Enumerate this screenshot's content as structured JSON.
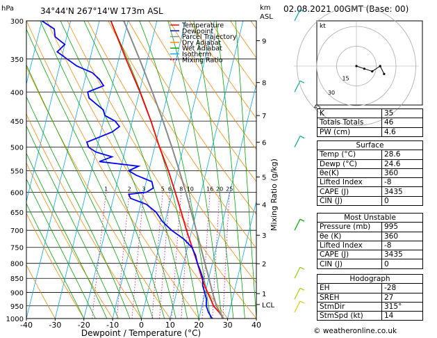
{
  "header": {
    "hpa_label": "hPa",
    "location": "34°44'N  267°14'W  173m  ASL",
    "km_label": "km",
    "asl_label": "ASL",
    "datetime": "02.08.2021  00GMT  (Base: 00)"
  },
  "chart_data": {
    "type": "line",
    "title": "",
    "xlabel": "Dewpoint / Temperature (°C)",
    "ylabel": "hPa",
    "right_axis_label": "Mixing Ratio (g/kg)",
    "xlim": [
      -40,
      40
    ],
    "ylim": [
      1000,
      300
    ],
    "x_ticks": [
      -40,
      -30,
      -20,
      -10,
      0,
      10,
      20,
      30,
      40
    ],
    "pressure_ticks": [
      300,
      350,
      400,
      450,
      500,
      550,
      600,
      650,
      700,
      750,
      800,
      850,
      900,
      950,
      1000
    ],
    "km_ticks": [
      {
        "label": "9",
        "p": 325
      },
      {
        "label": "8",
        "p": 385
      },
      {
        "label": "7",
        "p": 440
      },
      {
        "label": "6",
        "p": 490
      },
      {
        "label": "5",
        "p": 564
      },
      {
        "label": "4",
        "p": 630
      },
      {
        "label": "3",
        "p": 714
      },
      {
        "label": "2",
        "p": 801
      },
      {
        "label": "1",
        "p": 904
      },
      {
        "label": "LCL",
        "p": 945
      }
    ],
    "mixing_ratio_labels": [
      "1",
      "2",
      "3",
      "5",
      "6",
      "8",
      "10",
      "16",
      "20",
      "25"
    ],
    "mixing_ratio_values": [
      1,
      2,
      3,
      5,
      6,
      8,
      10,
      16,
      20,
      25
    ],
    "legend": [
      {
        "name": "Temperature",
        "color": "#ff0000",
        "dash": ""
      },
      {
        "name": "Dewpoint",
        "color": "#0000ff",
        "dash": ""
      },
      {
        "name": "Parcel Trajectory",
        "color": "#888888",
        "dash": ""
      },
      {
        "name": "Dry Adiabat",
        "color": "#ff8800",
        "dash": ""
      },
      {
        "name": "Wet Adiabat",
        "color": "#00aa00",
        "dash": ""
      },
      {
        "name": "Isotherm",
        "color": "#00aaff",
        "dash": ""
      },
      {
        "name": "Mixing Ratio",
        "color": "#cc0099",
        "dash": "2,2"
      }
    ],
    "series": [
      {
        "name": "Temperature",
        "color": "#ff0000",
        "points": [
          [
            1000,
            28.6
          ],
          [
            975,
            26.5
          ],
          [
            950,
            24
          ],
          [
            925,
            22.5
          ],
          [
            900,
            20.8
          ],
          [
            850,
            17.6
          ],
          [
            800,
            14.8
          ],
          [
            750,
            11.6
          ],
          [
            700,
            8.2
          ],
          [
            650,
            4.8
          ],
          [
            600,
            1.0
          ],
          [
            550,
            -3.2
          ],
          [
            500,
            -8.3
          ],
          [
            450,
            -13.5
          ],
          [
            400,
            -19.8
          ],
          [
            350,
            -27.5
          ],
          [
            300,
            -36
          ]
        ]
      },
      {
        "name": "Dewpoint",
        "color": "#0000ff",
        "points": [
          [
            1000,
            24.6
          ],
          [
            975,
            22.8
          ],
          [
            950,
            21.5
          ],
          [
            925,
            21.0
          ],
          [
            900,
            19.8
          ],
          [
            875,
            18.5
          ],
          [
            850,
            18.0
          ],
          [
            825,
            16.5
          ],
          [
            800,
            14.8
          ],
          [
            775,
            13.5
          ],
          [
            750,
            11.5
          ],
          [
            725,
            8.0
          ],
          [
            700,
            3.0
          ],
          [
            675,
            -1
          ],
          [
            650,
            -4
          ],
          [
            630,
            -8
          ],
          [
            615,
            -14
          ],
          [
            605,
            -15
          ],
          [
            600,
            -9
          ],
          [
            590,
            -7
          ],
          [
            575,
            -8
          ],
          [
            560,
            -14
          ],
          [
            550,
            -17
          ],
          [
            540,
            -14
          ],
          [
            530,
            -28
          ],
          [
            520,
            -24
          ],
          [
            510,
            -30
          ],
          [
            500,
            -33
          ],
          [
            490,
            -34
          ],
          [
            480,
            -30
          ],
          [
            470,
            -26
          ],
          [
            460,
            -24
          ],
          [
            450,
            -26
          ],
          [
            440,
            -30
          ],
          [
            430,
            -31
          ],
          [
            420,
            -34
          ],
          [
            410,
            -37
          ],
          [
            400,
            -38
          ],
          [
            390,
            -33
          ],
          [
            380,
            -35
          ],
          [
            370,
            -38
          ],
          [
            360,
            -44
          ],
          [
            350,
            -48
          ],
          [
            340,
            -52
          ],
          [
            330,
            -50
          ],
          [
            320,
            -54
          ],
          [
            310,
            -55
          ],
          [
            300,
            -60
          ]
        ]
      },
      {
        "name": "Parcel Trajectory",
        "color": "#888888",
        "points": [
          [
            1000,
            28.6
          ],
          [
            975,
            26.8
          ],
          [
            950,
            25.0
          ],
          [
            925,
            23.8
          ],
          [
            900,
            22.5
          ],
          [
            850,
            20.1
          ],
          [
            800,
            17.4
          ],
          [
            750,
            14.6
          ],
          [
            700,
            11.6
          ],
          [
            650,
            8.3
          ],
          [
            600,
            4.7
          ],
          [
            550,
            0.6
          ],
          [
            500,
            -4.0
          ],
          [
            450,
            -9.3
          ],
          [
            400,
            -15.5
          ],
          [
            350,
            -22.8
          ],
          [
            300,
            -31.5
          ]
        ]
      }
    ],
    "wind_barbs": [
      {
        "p": 300,
        "color": "#00aaaa"
      },
      {
        "p": 400,
        "color": "#00aaaa"
      },
      {
        "p": 500,
        "color": "#00aa88"
      },
      {
        "p": 700,
        "color": "#00aa00"
      },
      {
        "p": 850,
        "color": "#88cc00"
      },
      {
        "p": 925,
        "color": "#aacc00"
      },
      {
        "p": 975,
        "color": "#ddcc00"
      }
    ]
  },
  "hodograph": {
    "unit_label": "kt",
    "ring_labels": [
      "15",
      "30",
      "45"
    ],
    "points": [
      [
        0,
        0
      ],
      [
        6,
        -2
      ],
      [
        12,
        -4
      ],
      [
        18,
        0
      ],
      [
        21,
        -6
      ]
    ]
  },
  "indices": {
    "rows": [
      {
        "label": "K",
        "value": "35"
      },
      {
        "label": "Totals Totals",
        "value": "46"
      },
      {
        "label": "PW (cm)",
        "value": "4.6"
      }
    ]
  },
  "surface": {
    "title": "Surface",
    "rows": [
      {
        "label": "Temp (°C)",
        "value": "28.6"
      },
      {
        "label": "Dewp (°C)",
        "value": "24.6"
      },
      {
        "label": "θe(K)",
        "value": "360"
      },
      {
        "label": "Lifted Index",
        "value": "-8"
      },
      {
        "label": "CAPE (J)",
        "value": "3435"
      },
      {
        "label": "CIN (J)",
        "value": "0"
      }
    ]
  },
  "most_unstable": {
    "title": "Most Unstable",
    "rows": [
      {
        "label": "Pressure (mb)",
        "value": "995"
      },
      {
        "label": "θe (K)",
        "value": "360"
      },
      {
        "label": "Lifted Index",
        "value": "-8"
      },
      {
        "label": "CAPE (J)",
        "value": "3435"
      },
      {
        "label": "CIN (J)",
        "value": "0"
      }
    ]
  },
  "hodograph_table": {
    "title": "Hodograph",
    "rows": [
      {
        "label": "EH",
        "value": "-28"
      },
      {
        "label": "SREH",
        "value": "27"
      },
      {
        "label": "StmDir",
        "value": "315°"
      },
      {
        "label": "StmSpd (kt)",
        "value": "14"
      }
    ]
  },
  "footer": "© weatheronline.co.uk"
}
